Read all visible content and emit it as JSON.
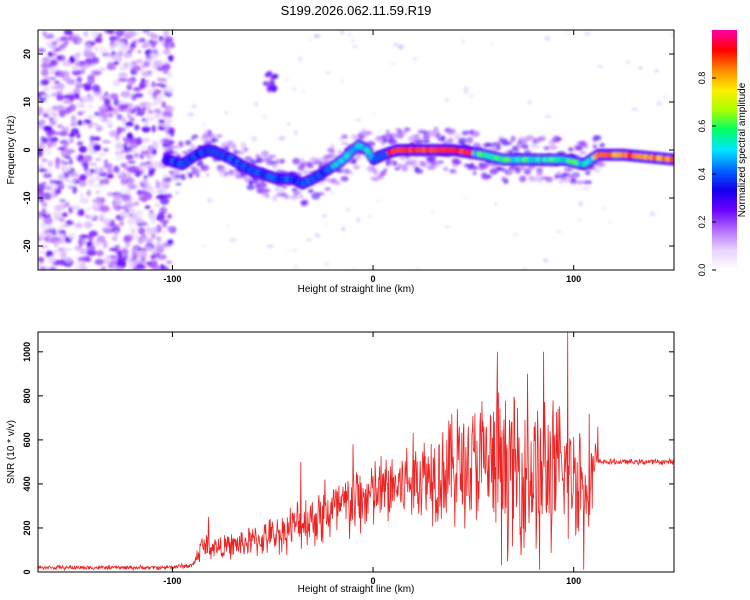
{
  "title": "S199.2026.062.11.59.R19",
  "chart_data": [
    {
      "type": "heatmap",
      "title": "S199.2026.062.11.59.R19",
      "xlabel": "Height of straight line (km)",
      "ylabel": "Frequency (Hz)",
      "xlim": [
        -167,
        150
      ],
      "ylim": [
        -25,
        25
      ],
      "xticks": [
        {
          "value": -100,
          "label": "-100"
        },
        {
          "value": 0,
          "label": "0"
        },
        {
          "value": 100,
          "label": "100"
        }
      ],
      "yticks": [
        {
          "value": 20,
          "label": "20"
        },
        {
          "value": 10,
          "label": "10"
        },
        {
          "value": 0,
          "label": "0"
        },
        {
          "value": -10,
          "label": "-10"
        },
        {
          "value": -20,
          "label": "-20"
        }
      ],
      "ridge": {
        "x": [
          -103,
          -95,
          -88,
          -82,
          -75,
          -70,
          -62,
          -55,
          -48,
          -40,
          -35,
          -30,
          -22,
          -15,
          -10,
          -7,
          -3,
          0,
          5,
          12,
          25,
          40,
          55,
          65,
          80,
          95,
          105,
          112,
          125,
          150
        ],
        "freq": [
          -2,
          -3,
          -1,
          0,
          -1,
          -2,
          -4,
          -5,
          -6,
          -6,
          -7,
          -6,
          -4,
          -2,
          0,
          1,
          0,
          -2,
          -1,
          0,
          0,
          0,
          -1,
          -2,
          -2,
          -2,
          -3,
          -1,
          -1,
          -2
        ]
      },
      "colorbar": {
        "label": "Normalized spectral amplitude",
        "range": [
          0,
          1
        ],
        "ticks": [
          {
            "value": 0.0,
            "label": "0.0"
          },
          {
            "value": 0.2,
            "label": "0.2"
          },
          {
            "value": 0.4,
            "label": "0.4"
          },
          {
            "value": 0.6,
            "label": "0.6"
          },
          {
            "value": 0.8,
            "label": "0.8"
          }
        ],
        "colormap": [
          "#ffffff",
          "#e8d2ff",
          "#b46dff",
          "#6a00ff",
          "#1100ee",
          "#0066ff",
          "#00e5ff",
          "#00ff66",
          "#aaff00",
          "#ffee00",
          "#ff8800",
          "#ff0000",
          "#ff00aa"
        ]
      }
    },
    {
      "type": "line",
      "xlabel": "Height of straight line (km)",
      "ylabel": "SNR (10 * v/v)",
      "xlim": [
        -167,
        150
      ],
      "ylim": [
        0,
        1090
      ],
      "xticks": [
        {
          "value": -100,
          "label": "-100"
        },
        {
          "value": 0,
          "label": "0"
        },
        {
          "value": 100,
          "label": "100"
        }
      ],
      "yticks": [
        {
          "value": 0,
          "label": "0"
        },
        {
          "value": 200,
          "label": "200"
        },
        {
          "value": 400,
          "label": "400"
        },
        {
          "value": 600,
          "label": "600"
        },
        {
          "value": 800,
          "label": "800"
        },
        {
          "value": 1000,
          "label": "1000"
        }
      ],
      "series": [
        {
          "name": "SNR",
          "color": "#ee2222",
          "envelope": {
            "x": [
              -167,
              -105,
              -90,
              -85,
              -75,
              -65,
              -55,
              -45,
              -35,
              -25,
              -15,
              -5,
              5,
              15,
              25,
              35,
              45,
              55,
              65,
              75,
              85,
              95,
              100,
              105,
              110,
              112,
              120,
              150
            ],
            "mean": [
              20,
              20,
              30,
              120,
              110,
              130,
              150,
              180,
              230,
              260,
              290,
              330,
              370,
              400,
              440,
              460,
              480,
              490,
              470,
              450,
              460,
              440,
              430,
              440,
              450,
              500,
              500,
              500
            ],
            "spread": [
              12,
              12,
              15,
              80,
              60,
              80,
              90,
              110,
              140,
              170,
              200,
              200,
              200,
              230,
              250,
              300,
              330,
              380,
              420,
              420,
              430,
              380,
              350,
              330,
              300,
              15,
              15,
              15
            ]
          },
          "peaks": [
            {
              "x": -82,
              "y": 250
            },
            {
              "x": -36,
              "y": 500
            },
            {
              "x": -24,
              "y": 420
            },
            {
              "x": -10,
              "y": 580
            },
            {
              "x": 30,
              "y": 520
            },
            {
              "x": 42,
              "y": 740
            },
            {
              "x": 62,
              "y": 1000
            },
            {
              "x": 77,
              "y": 900
            },
            {
              "x": 85,
              "y": 1000
            },
            {
              "x": 97,
              "y": 1090
            },
            {
              "x": 112,
              "y": 660
            }
          ],
          "troughs": [
            {
              "x": 64,
              "y": 30
            },
            {
              "x": 83,
              "y": 10
            },
            {
              "x": 105,
              "y": 10
            }
          ]
        }
      ]
    }
  ]
}
